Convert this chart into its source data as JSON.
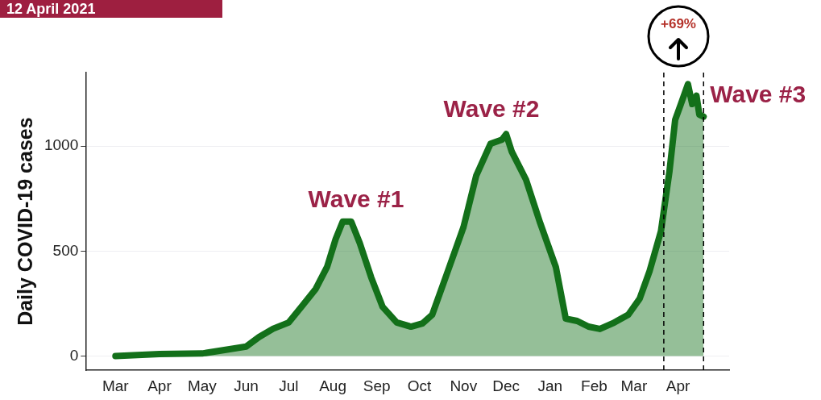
{
  "chart_data": {
    "type": "area",
    "title": "12 April 2021",
    "ylabel": "Daily COVID-19 cases",
    "x": [
      "2020-03-01",
      "2020-04-01",
      "2020-05-01",
      "2020-06-01",
      "2020-06-10",
      "2020-06-20",
      "2020-07-01",
      "2020-07-10",
      "2020-07-20",
      "2020-07-28",
      "2020-08-03",
      "2020-08-08",
      "2020-08-14",
      "2020-08-20",
      "2020-08-28",
      "2020-09-05",
      "2020-09-15",
      "2020-09-25",
      "2020-10-03",
      "2020-10-10",
      "2020-10-20",
      "2020-11-01",
      "2020-11-10",
      "2020-11-20",
      "2020-11-28",
      "2020-12-01",
      "2020-12-05",
      "2020-12-15",
      "2020-12-25",
      "2021-01-05",
      "2021-01-12",
      "2021-01-20",
      "2021-01-28",
      "2021-02-05",
      "2021-02-15",
      "2021-02-25",
      "2021-03-05",
      "2021-03-12",
      "2021-03-20",
      "2021-03-26",
      "2021-03-30",
      "2021-04-03",
      "2021-04-08",
      "2021-04-11",
      "2021-04-14",
      "2021-04-16",
      "2021-04-19"
    ],
    "series": [
      {
        "color": "#13701a",
        "values": [
          0,
          10,
          12,
          45,
          90,
          130,
          160,
          235,
          320,
          425,
          557,
          640,
          640,
          538,
          375,
          235,
          160,
          140,
          155,
          197,
          386,
          614,
          860,
          1011,
          1030,
          1057,
          973,
          840,
          633,
          424,
          178,
          167,
          140,
          129,
          159,
          197,
          273,
          405,
          595,
          880,
          1125,
          1200,
          1295,
          1200,
          1240,
          1150,
          1140
        ]
      }
    ],
    "xlim": [
      "2020-02-09",
      "2021-05-07"
    ],
    "xticks": [
      {
        "value": "2020-03-01",
        "label": "Mar"
      },
      {
        "value": "2020-04-01",
        "label": "Apr"
      },
      {
        "value": "2020-05-01",
        "label": "May"
      },
      {
        "value": "2020-06-01",
        "label": "Jun"
      },
      {
        "value": "2020-07-01",
        "label": "Jul"
      },
      {
        "value": "2020-08-01",
        "label": "Aug"
      },
      {
        "value": "2020-09-01",
        "label": "Sep"
      },
      {
        "value": "2020-10-01",
        "label": "Oct"
      },
      {
        "value": "2020-11-01",
        "label": "Nov"
      },
      {
        "value": "2020-12-01",
        "label": "Dec"
      },
      {
        "value": "2021-01-01",
        "label": "Jan"
      },
      {
        "value": "2021-02-01",
        "label": "Feb"
      },
      {
        "value": "2021-03-01",
        "label": "Mar"
      },
      {
        "value": "2021-04-01",
        "label": "Apr"
      }
    ],
    "ylim": [
      -68,
      1350
    ],
    "yticks": [
      0,
      500,
      1000
    ],
    "grid": "y",
    "legend": false,
    "marker": "none",
    "line_style": "solid",
    "ref_lines": [
      {
        "axis": "x",
        "value": "2021-03-22",
        "color": "#000000",
        "line_style": "dashed"
      },
      {
        "axis": "x",
        "value": "2021-04-19",
        "color": "#000000",
        "line_style": "dashed"
      }
    ],
    "annotations": [
      "Wave #1",
      "Wave #2",
      {
        "text": "Wave #3",
        "x": "2021-04-19",
        "y": 1240
      },
      "+69%"
    ]
  }
}
